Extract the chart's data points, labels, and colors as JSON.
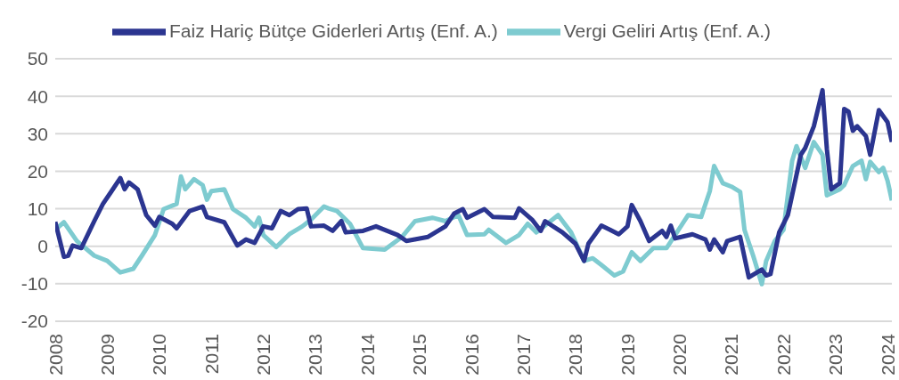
{
  "chart_data": {
    "type": "line",
    "legend": "top",
    "grid": "y",
    "line_style": "solid",
    "marker": "none",
    "ylim": [
      -20,
      50
    ],
    "yticks": [
      -20,
      -10,
      0,
      10,
      20,
      30,
      40,
      50
    ],
    "xlim": [
      "2008-01",
      "2024-02"
    ],
    "xticks": [
      {
        "value": "2008-01",
        "label": "2008"
      },
      {
        "value": "2009-01",
        "label": "2009"
      },
      {
        "value": "2010-01",
        "label": "2010"
      },
      {
        "value": "2011-01",
        "label": "2011"
      },
      {
        "value": "2012-01",
        "label": "2012"
      },
      {
        "value": "2013-01",
        "label": "2013"
      },
      {
        "value": "2014-01",
        "label": "2014"
      },
      {
        "value": "2015-01",
        "label": "2015"
      },
      {
        "value": "2016-01",
        "label": "2016"
      },
      {
        "value": "2017-01",
        "label": "2017"
      },
      {
        "value": "2018-01",
        "label": "2018"
      },
      {
        "value": "2019-01",
        "label": "2019"
      },
      {
        "value": "2020-01",
        "label": "2020"
      },
      {
        "value": "2021-01",
        "label": "2021"
      },
      {
        "value": "2022-01",
        "label": "2022"
      },
      {
        "value": "2023-01",
        "label": "2023"
      },
      {
        "value": "2024-01",
        "label": "2024"
      }
    ],
    "series": [
      {
        "name": "Vergi Geliri Artış (Enf. A.)",
        "color": "#7ecbd0",
        "x": [
          "2008-01",
          "2008-03",
          "2008-06",
          "2008-10",
          "2009-01",
          "2009-04",
          "2009-07",
          "2009-09",
          "2009-12",
          "2010-02",
          "2010-05",
          "2010-06",
          "2010-07",
          "2010-09",
          "2010-11",
          "2010-12",
          "2011-01",
          "2011-04",
          "2011-06",
          "2011-09",
          "2011-11",
          "2011-12",
          "2012-01",
          "2012-04",
          "2012-07",
          "2012-10",
          "2012-12",
          "2013-03",
          "2013-04",
          "2013-06",
          "2013-09",
          "2013-12",
          "2014-05",
          "2014-09",
          "2014-12",
          "2015-04",
          "2015-07",
          "2015-10",
          "2015-12",
          "2016-04",
          "2016-05",
          "2016-09",
          "2016-12",
          "2017-02",
          "2017-04",
          "2017-09",
          "2017-12",
          "2018-03",
          "2018-05",
          "2018-07",
          "2018-10",
          "2018-12",
          "2019-02",
          "2019-04",
          "2019-07",
          "2019-10",
          "2019-12",
          "2020-03",
          "2020-06",
          "2020-08",
          "2020-09",
          "2020-11",
          "2021-01",
          "2021-03",
          "2021-04",
          "2021-06",
          "2021-08",
          "2021-09",
          "2021-11",
          "2022-01",
          "2022-03",
          "2022-04",
          "2022-06",
          "2022-08",
          "2022-10",
          "2022-11",
          "2023-02",
          "2023-03",
          "2023-05",
          "2023-07",
          "2023-08",
          "2023-09",
          "2023-11",
          "2023-12",
          "2024-01",
          "2024-02"
        ],
        "values": [
          4.4,
          6.4,
          1.4,
          -2.5,
          -3.9,
          -7,
          -6,
          -2.5,
          3,
          9.9,
          11.3,
          18.6,
          15.2,
          17.9,
          16.3,
          12.4,
          14.7,
          15.2,
          9.9,
          7.6,
          5.3,
          7.6,
          3,
          -0.2,
          3.2,
          5.3,
          7.1,
          10.6,
          10.1,
          9.4,
          6,
          -0.5,
          -0.9,
          2.5,
          6.7,
          7.6,
          6.7,
          8.3,
          3,
          3.2,
          4.4,
          0.9,
          3,
          6,
          3.7,
          8.3,
          3.7,
          -3.9,
          -3.2,
          -5,
          -7.8,
          -6.7,
          -1.6,
          -3.9,
          -0.5,
          -0.5,
          3,
          8.3,
          7.8,
          14.7,
          21.4,
          16.8,
          15.9,
          14.5,
          4.4,
          -2.5,
          -10.1,
          -3.9,
          1.4,
          4.4,
          22.8,
          26.7,
          20.9,
          27.8,
          24.4,
          13.6,
          15.2,
          16.3,
          21.4,
          22.8,
          17.9,
          22.5,
          19.8,
          20.9,
          17.5,
          12.2
        ]
      },
      {
        "name": "Faiz Hariç Bütçe Giderleri Artış (Enf. A.)",
        "color": "#2b3590",
        "x": [
          "2008-01",
          "2008-03",
          "2008-04",
          "2008-05",
          "2008-07",
          "2008-10",
          "2008-12",
          "2009-02",
          "2009-04",
          "2009-05",
          "2009-06",
          "2009-08",
          "2009-10",
          "2009-12",
          "2010-01",
          "2010-04",
          "2010-05",
          "2010-08",
          "2010-11",
          "2010-12",
          "2011-04",
          "2011-07",
          "2011-09",
          "2011-11",
          "2012-01",
          "2012-03",
          "2012-05",
          "2012-07",
          "2012-09",
          "2012-11",
          "2012-12",
          "2013-03",
          "2013-05",
          "2013-07",
          "2013-08",
          "2013-12",
          "2014-03",
          "2014-08",
          "2014-10",
          "2015-03",
          "2015-07",
          "2015-09",
          "2015-11",
          "2015-12",
          "2016-04",
          "2016-06",
          "2016-11",
          "2016-12",
          "2017-03",
          "2017-05",
          "2017-06",
          "2017-10",
          "2018-01",
          "2018-03",
          "2018-04",
          "2018-07",
          "2018-09",
          "2018-11",
          "2019-01",
          "2019-02",
          "2019-04",
          "2019-06",
          "2019-09",
          "2019-10",
          "2019-11",
          "2019-12",
          "2020-04",
          "2020-07",
          "2020-08",
          "2020-09",
          "2020-11",
          "2020-12",
          "2021-03",
          "2021-05",
          "2021-08",
          "2021-09",
          "2021-10",
          "2021-12",
          "2022-02",
          "2022-05",
          "2022-06",
          "2022-08",
          "2022-10",
          "2022-11",
          "2022-12",
          "2023-02",
          "2023-03",
          "2023-04",
          "2023-05",
          "2023-06",
          "2023-08",
          "2023-09",
          "2023-11",
          "2024-01",
          "2024-02"
        ],
        "values": [
          6.5,
          -2.8,
          -2.5,
          0.2,
          -0.5,
          6.7,
          11.3,
          14.7,
          18.2,
          15.2,
          17,
          15.2,
          8.3,
          5.5,
          7.8,
          6,
          4.8,
          9.4,
          10.6,
          7.8,
          6.4,
          0.2,
          1.8,
          0.9,
          5.3,
          4.8,
          9.4,
          8.3,
          9.9,
          10.1,
          5.3,
          5.5,
          4.1,
          6.7,
          3.7,
          4.1,
          5.3,
          3,
          1.4,
          2.5,
          5.3,
          8.7,
          9.9,
          7.6,
          9.9,
          7.8,
          7.6,
          10.1,
          7.1,
          4.1,
          6.7,
          3.7,
          0.7,
          -3.9,
          0.7,
          5.5,
          4.4,
          3.2,
          5.3,
          11,
          6.7,
          1.4,
          4.1,
          2.5,
          5.5,
          2.1,
          3.2,
          1.8,
          -0.9,
          1.8,
          -1.6,
          1.4,
          2.5,
          -8.3,
          -6.2,
          -7.8,
          -7.4,
          3.7,
          8.3,
          24.4,
          26.2,
          32,
          41.6,
          26,
          15.2,
          16.8,
          36.6,
          35.9,
          30.8,
          32,
          29.4,
          24.4,
          36.3,
          33.1,
          27.8
        ]
      }
    ]
  }
}
